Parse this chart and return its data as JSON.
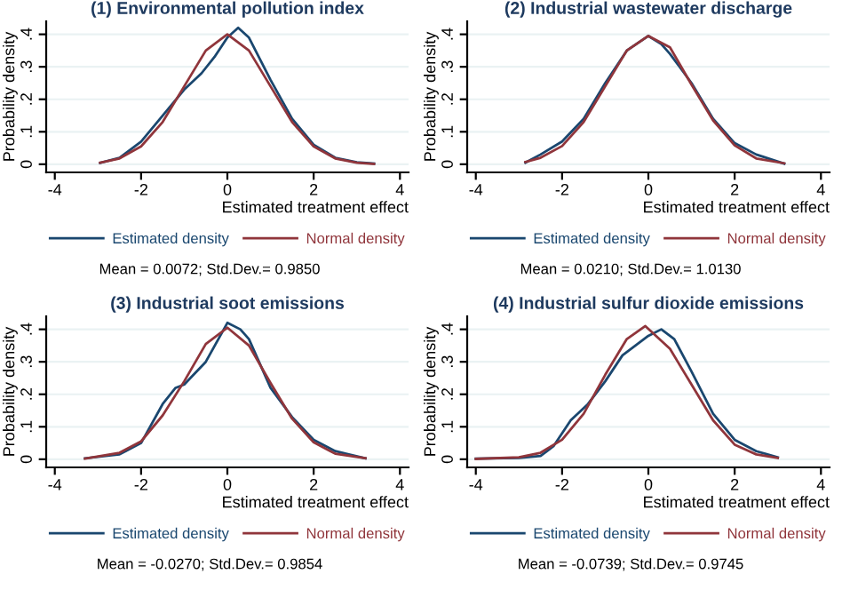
{
  "chart_data": [
    {
      "type": "line",
      "title": "(1) Environmental pollution index",
      "xlabel": "Estimated treatment effect",
      "ylabel": "Probability density",
      "xlim": [
        -4.2,
        4.2
      ],
      "ylim": [
        -0.025,
        0.44
      ],
      "xticks": [
        -4,
        -2,
        0,
        2,
        4
      ],
      "yticks": [
        {
          "value": 0,
          "label": "0"
        },
        {
          "value": 0.1,
          "label": ".1"
        },
        {
          "value": 0.2,
          "label": ".2"
        },
        {
          "value": 0.3,
          "label": ".3"
        },
        {
          "value": 0.4,
          "label": ".4"
        }
      ],
      "grid": "y",
      "legend": "bottom",
      "annotations": [
        "Mean = 0.0072; Std.Dev.= 0.9850"
      ],
      "series": [
        {
          "name": "Estimated density",
          "color": "#1a476f",
          "x": [
            -2.95,
            -2.5,
            -2,
            -1.5,
            -1,
            -0.6,
            -0.3,
            0,
            0.25,
            0.5,
            1,
            1.5,
            2,
            2.5,
            3,
            3.4
          ],
          "values": [
            0.004,
            0.02,
            0.07,
            0.15,
            0.23,
            0.28,
            0.33,
            0.39,
            0.42,
            0.39,
            0.26,
            0.14,
            0.06,
            0.02,
            0.006,
            0.002
          ]
        },
        {
          "name": "Normal density",
          "color": "#90353b",
          "x": [
            -2.95,
            -2.5,
            -2,
            -1.5,
            -1,
            -0.5,
            0,
            0.5,
            1,
            1.5,
            2,
            2.5,
            3,
            3.4
          ],
          "values": [
            0.005,
            0.018,
            0.055,
            0.13,
            0.24,
            0.35,
            0.4,
            0.35,
            0.24,
            0.13,
            0.055,
            0.018,
            0.005,
            0.001
          ]
        }
      ]
    },
    {
      "type": "line",
      "title": "(2) Industrial wastewater discharge",
      "xlabel": "Estimated treatment effect",
      "ylabel": "Probability density",
      "xlim": [
        -4.2,
        4.2
      ],
      "ylim": [
        -0.025,
        0.44
      ],
      "xticks": [
        -4,
        -2,
        0,
        2,
        4
      ],
      "yticks": [
        {
          "value": 0,
          "label": "0"
        },
        {
          "value": 0.1,
          "label": ".1"
        },
        {
          "value": 0.2,
          "label": ".2"
        },
        {
          "value": 0.3,
          "label": ".3"
        },
        {
          "value": 0.4,
          "label": ".4"
        }
      ],
      "grid": "y",
      "legend": "bottom",
      "annotations": [
        "Mean = 0.0210; Std.Dev.= 1.0130"
      ],
      "series": [
        {
          "name": "Estimated density",
          "color": "#1a476f",
          "x": [
            -2.85,
            -2.5,
            -2,
            -1.5,
            -1,
            -0.5,
            0,
            0.3,
            0.5,
            1,
            1.5,
            2,
            2.5,
            3.15
          ],
          "values": [
            0.005,
            0.03,
            0.07,
            0.14,
            0.25,
            0.35,
            0.395,
            0.37,
            0.34,
            0.25,
            0.14,
            0.065,
            0.03,
            0.002
          ]
        },
        {
          "name": "Normal density",
          "color": "#90353b",
          "x": [
            -2.85,
            -2.5,
            -2,
            -1.5,
            -1,
            -0.5,
            0,
            0.5,
            1,
            1.5,
            2,
            2.5,
            3.15
          ],
          "values": [
            0.007,
            0.02,
            0.056,
            0.13,
            0.24,
            0.35,
            0.395,
            0.36,
            0.245,
            0.135,
            0.058,
            0.018,
            0.003
          ]
        }
      ]
    },
    {
      "type": "line",
      "title": "(3) Industrial soot emissions",
      "xlabel": "Estimated treatment effect",
      "ylabel": "Probability density",
      "xlim": [
        -4.2,
        4.2
      ],
      "ylim": [
        -0.025,
        0.44
      ],
      "xticks": [
        -4,
        -2,
        0,
        2,
        4
      ],
      "yticks": [
        {
          "value": 0,
          "label": "0"
        },
        {
          "value": 0.1,
          "label": ".1"
        },
        {
          "value": 0.2,
          "label": ".2"
        },
        {
          "value": 0.3,
          "label": ".3"
        },
        {
          "value": 0.4,
          "label": ".4"
        }
      ],
      "grid": "y",
      "legend": "bottom",
      "annotations": [
        "Mean = -0.0270; Std.Dev.= 0.9854"
      ],
      "series": [
        {
          "name": "Estimated density",
          "color": "#1a476f",
          "x": [
            -3.3,
            -2.5,
            -2,
            -1.5,
            -1.2,
            -1,
            -0.5,
            0,
            0.3,
            0.5,
            1,
            1.5,
            2,
            2.5,
            3.2
          ],
          "values": [
            0.003,
            0.015,
            0.05,
            0.17,
            0.22,
            0.23,
            0.3,
            0.42,
            0.4,
            0.37,
            0.22,
            0.13,
            0.06,
            0.025,
            0.003
          ]
        },
        {
          "name": "Normal density",
          "color": "#90353b",
          "x": [
            -3.3,
            -2.5,
            -2,
            -1.5,
            -1,
            -0.5,
            0,
            0.5,
            1,
            1.5,
            2,
            2.5,
            3.2
          ],
          "values": [
            0.002,
            0.02,
            0.055,
            0.135,
            0.24,
            0.355,
            0.405,
            0.35,
            0.235,
            0.125,
            0.052,
            0.017,
            0.003
          ]
        }
      ]
    },
    {
      "type": "line",
      "title": "(4) Industrial sulfur dioxide emissions",
      "xlabel": "Estimated treatment effect",
      "ylabel": "Probability density",
      "xlim": [
        -4.2,
        4.2
      ],
      "ylim": [
        -0.025,
        0.44
      ],
      "xticks": [
        -4,
        -2,
        0,
        2,
        4
      ],
      "yticks": [
        {
          "value": 0,
          "label": "0"
        },
        {
          "value": 0.1,
          "label": ".1"
        },
        {
          "value": 0.2,
          "label": ".2"
        },
        {
          "value": 0.3,
          "label": ".3"
        },
        {
          "value": 0.4,
          "label": ".4"
        }
      ],
      "grid": "y",
      "legend": "bottom",
      "annotations": [
        "Mean = -0.0739; Std.Dev.= 0.9745"
      ],
      "series": [
        {
          "name": "Estimated density",
          "color": "#1a476f",
          "x": [
            -4,
            -3,
            -2.5,
            -2.2,
            -1.8,
            -1.4,
            -1,
            -0.6,
            -0.3,
            0,
            0.3,
            0.6,
            1,
            1.5,
            2,
            2.5,
            3
          ],
          "values": [
            0.002,
            0.004,
            0.01,
            0.04,
            0.12,
            0.17,
            0.24,
            0.32,
            0.35,
            0.38,
            0.4,
            0.37,
            0.27,
            0.14,
            0.06,
            0.025,
            0.006
          ]
        },
        {
          "name": "Normal density",
          "color": "#90353b",
          "x": [
            -4,
            -3,
            -2.5,
            -2,
            -1.5,
            -1,
            -0.5,
            -0.07,
            0.5,
            1,
            1.5,
            2,
            2.5,
            3
          ],
          "values": [
            0.001,
            0.006,
            0.02,
            0.06,
            0.14,
            0.26,
            0.37,
            0.41,
            0.34,
            0.23,
            0.12,
            0.045,
            0.015,
            0.004
          ]
        }
      ]
    }
  ]
}
